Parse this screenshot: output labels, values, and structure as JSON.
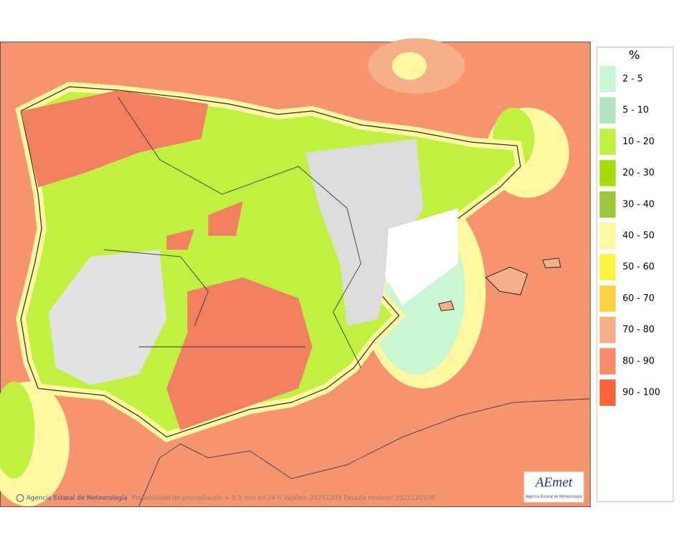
{
  "map": {
    "credit": "Agencia Estatal de Meteorología",
    "caption": "Probabilidad de precipitación > 0.5 mm en 24 h Validez: 20251203 Pasada modelo: 2025120100",
    "logo": {
      "name": "AEmet",
      "subtitle": "Agencia Estatal de Meteorología"
    }
  },
  "legend": {
    "title": "%",
    "items": [
      {
        "label": "2 - 5",
        "color": "#c8f7d2"
      },
      {
        "label": "5 - 10",
        "color": "#b0e4bc"
      },
      {
        "label": "10 - 20",
        "color": "#c0f040"
      },
      {
        "label": "20 - 30",
        "color": "#a6de0c"
      },
      {
        "label": "30 - 40",
        "color": "#9ac83a"
      },
      {
        "label": "40 - 50",
        "color": "#fff8a0"
      },
      {
        "label": "50 - 60",
        "color": "#fff23c"
      },
      {
        "label": "60 - 70",
        "color": "#ffd040"
      },
      {
        "label": "70 - 80",
        "color": "#f4b088"
      },
      {
        "label": "80 - 90",
        "color": "#f88c68"
      },
      {
        "label": "90 - 100",
        "color": "#ff6438"
      }
    ]
  }
}
